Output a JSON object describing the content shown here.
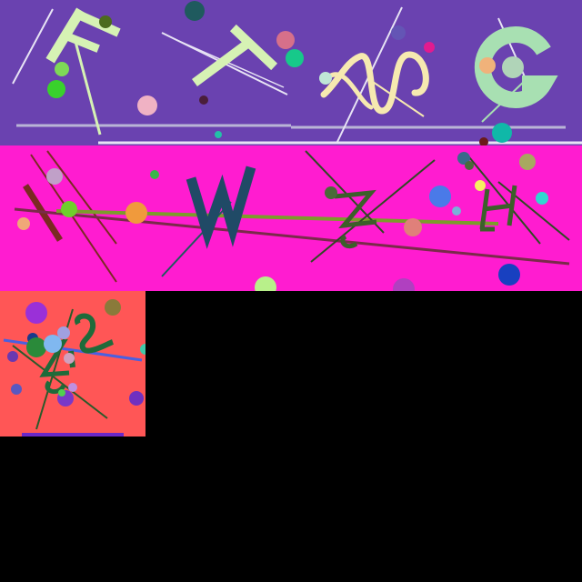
{
  "captcha_rows": [
    {
      "name": "row-purple",
      "background": "#6a42b0",
      "glyphs": [
        "F",
        "T",
        "N",
        "G"
      ]
    },
    {
      "name": "row-magenta",
      "background": "#ff1cd0",
      "glyphs": [
        "W",
        "Z",
        "H"
      ]
    },
    {
      "name": "tile-coral",
      "background": "#ff5656",
      "glyphs": [
        "Z",
        "G"
      ]
    }
  ],
  "colors": {
    "canvas": "#000000",
    "glyph_pale_green": "#d6f2b4",
    "glyph_cream": "#f6e9b0",
    "glyph_mint": "#a8e0b2",
    "glyph_navy": "#204a66",
    "glyph_dark_green": "#3c5f2a",
    "glyph_teal_green": "#1e6b3a"
  }
}
